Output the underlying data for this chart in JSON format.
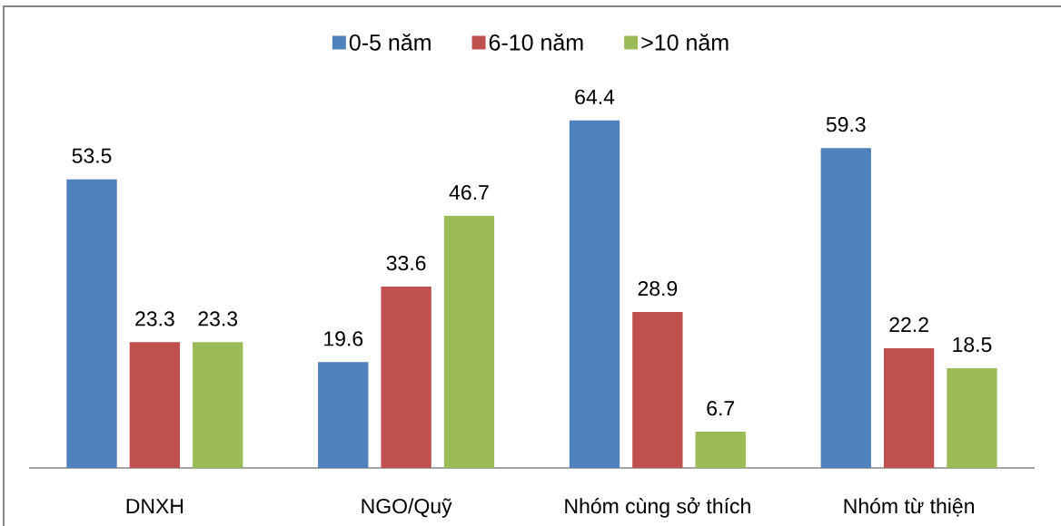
{
  "chart_data": {
    "type": "bar",
    "categories": [
      "DNXH",
      "NGO/Quỹ",
      "Nhóm cùng sở thích",
      "Nhóm từ thiện"
    ],
    "series": [
      {
        "name": "0-5 năm",
        "color": "#4f81bd",
        "values": [
          53.5,
          19.6,
          64.4,
          59.3
        ]
      },
      {
        "name": "6-10 năm",
        "color": "#c0504d",
        "values": [
          23.3,
          33.6,
          28.9,
          22.2
        ]
      },
      {
        "name": ">10 năm",
        "color": "#9bbb59",
        "values": [
          23.3,
          46.7,
          6.7,
          18.5
        ]
      }
    ],
    "data_labels": true,
    "legend": "top",
    "tick_labels": "x"
  }
}
